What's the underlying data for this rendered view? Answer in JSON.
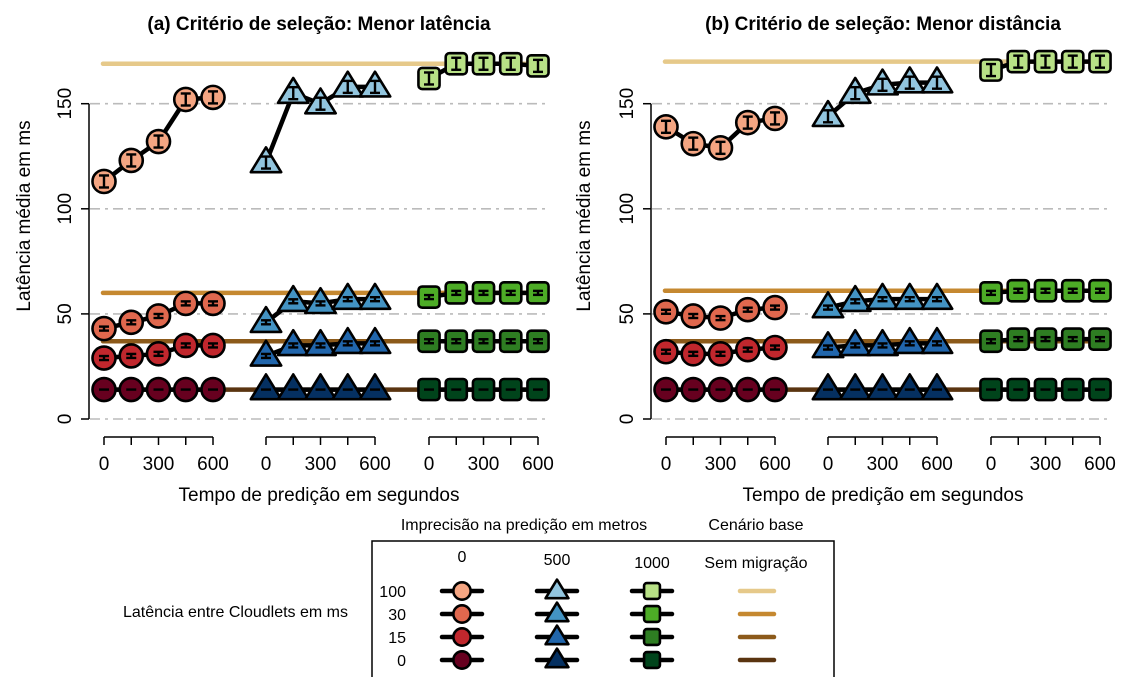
{
  "chart_data": [
    {
      "type": "line",
      "title": "(a) Critério de seleção: Menor latência",
      "xlabel": "Tempo de predição em segundos",
      "ylabel": "Latência média em ms",
      "ylim": [
        0,
        180
      ],
      "yticks": [
        0,
        50,
        100,
        150
      ],
      "grid": true,
      "xtick_labels": [
        "0",
        "300",
        "600"
      ],
      "x": [
        0,
        150,
        300,
        450,
        600
      ],
      "groups": [
        {
          "imprecision": "0",
          "series": [
            {
              "cloudlet_latency": "100",
              "values": [
                113,
                123,
                132,
                152,
                153
              ]
            },
            {
              "cloudlet_latency": "30",
              "values": [
                43,
                46,
                49,
                55,
                55
              ]
            },
            {
              "cloudlet_latency": "15",
              "values": [
                29,
                30,
                31,
                35,
                35
              ]
            },
            {
              "cloudlet_latency": "0",
              "values": [
                14,
                14,
                14,
                14,
                14
              ]
            }
          ]
        },
        {
          "imprecision": "500",
          "series": [
            {
              "cloudlet_latency": "100",
              "values": [
                122,
                155,
                150,
                158,
                158
              ]
            },
            {
              "cloudlet_latency": "30",
              "values": [
                46,
                56,
                55,
                57,
                57
              ]
            },
            {
              "cloudlet_latency": "15",
              "values": [
                30,
                35,
                35,
                36,
                36
              ]
            },
            {
              "cloudlet_latency": "0",
              "values": [
                14,
                14,
                14,
                14,
                14
              ]
            }
          ]
        },
        {
          "imprecision": "1000",
          "series": [
            {
              "cloudlet_latency": "100",
              "values": [
                162,
                169,
                169,
                169,
                168
              ]
            },
            {
              "cloudlet_latency": "30",
              "values": [
                58,
                60,
                60,
                60,
                60
              ]
            },
            {
              "cloudlet_latency": "15",
              "values": [
                37,
                37,
                37,
                37,
                37
              ]
            },
            {
              "cloudlet_latency": "0",
              "values": [
                14,
                14,
                14,
                14,
                14
              ]
            }
          ]
        }
      ],
      "baseline": [
        {
          "cloudlet_latency": "100",
          "value": 169
        },
        {
          "cloudlet_latency": "30",
          "value": 60
        },
        {
          "cloudlet_latency": "15",
          "value": 37
        },
        {
          "cloudlet_latency": "0",
          "value": 14
        }
      ]
    },
    {
      "type": "line",
      "title": "(b) Critério de seleção: Menor distância",
      "xlabel": "Tempo de predição em segundos",
      "ylabel": "Latência média em ms",
      "ylim": [
        0,
        180
      ],
      "yticks": [
        0,
        50,
        100,
        150
      ],
      "grid": true,
      "xtick_labels": [
        "0",
        "300",
        "600"
      ],
      "x": [
        0,
        150,
        300,
        450,
        600
      ],
      "groups": [
        {
          "imprecision": "0",
          "series": [
            {
              "cloudlet_latency": "100",
              "values": [
                139,
                131,
                129,
                141,
                143
              ]
            },
            {
              "cloudlet_latency": "30",
              "values": [
                51,
                49,
                48,
                52,
                53
              ]
            },
            {
              "cloudlet_latency": "15",
              "values": [
                32,
                31,
                31,
                33,
                34
              ]
            },
            {
              "cloudlet_latency": "0",
              "values": [
                14,
                14,
                14,
                14,
                14
              ]
            }
          ]
        },
        {
          "imprecision": "500",
          "series": [
            {
              "cloudlet_latency": "100",
              "values": [
                144,
                155,
                159,
                160,
                160
              ]
            },
            {
              "cloudlet_latency": "30",
              "values": [
                53,
                56,
                57,
                57,
                57
              ]
            },
            {
              "cloudlet_latency": "15",
              "values": [
                34,
                35,
                35,
                36,
                36
              ]
            },
            {
              "cloudlet_latency": "0",
              "values": [
                14,
                14,
                14,
                14,
                14
              ]
            }
          ]
        },
        {
          "imprecision": "1000",
          "series": [
            {
              "cloudlet_latency": "100",
              "values": [
                166,
                170,
                170,
                170,
                170
              ]
            },
            {
              "cloudlet_latency": "30",
              "values": [
                60,
                61,
                61,
                61,
                61
              ]
            },
            {
              "cloudlet_latency": "15",
              "values": [
                37,
                38,
                38,
                38,
                38
              ]
            },
            {
              "cloudlet_latency": "0",
              "values": [
                14,
                14,
                14,
                14,
                14
              ]
            }
          ]
        }
      ],
      "baseline": [
        {
          "cloudlet_latency": "100",
          "value": 170
        },
        {
          "cloudlet_latency": "30",
          "value": 61
        },
        {
          "cloudlet_latency": "15",
          "value": 37
        },
        {
          "cloudlet_latency": "0",
          "value": 14
        }
      ]
    }
  ],
  "legend": {
    "imprecision_title": "Imprecisão na predição em metros",
    "baseline_title": "Cenário base",
    "column_labels": [
      "0",
      "500",
      "1000"
    ],
    "baseline_column_label": "Sem migração",
    "row_title": "Latência entre Cloudlets em ms",
    "row_labels": [
      "100",
      "30",
      "15",
      "0"
    ],
    "markers": [
      "circle",
      "triangle",
      "square"
    ]
  },
  "colors": {
    "circle": [
      "#f4a582",
      "#e0684e",
      "#c1272d",
      "#67001f"
    ],
    "triangle": [
      "#92c5de",
      "#4393c3",
      "#2166ac",
      "#053061"
    ],
    "square": [
      "#b8e186",
      "#4dac26",
      "#2e7d22",
      "#00441b"
    ],
    "baseline": [
      "#e6c98a",
      "#c58830",
      "#8c5a1a",
      "#5a3410"
    ],
    "grid": "#bbbbbb",
    "axis": "#000000"
  }
}
